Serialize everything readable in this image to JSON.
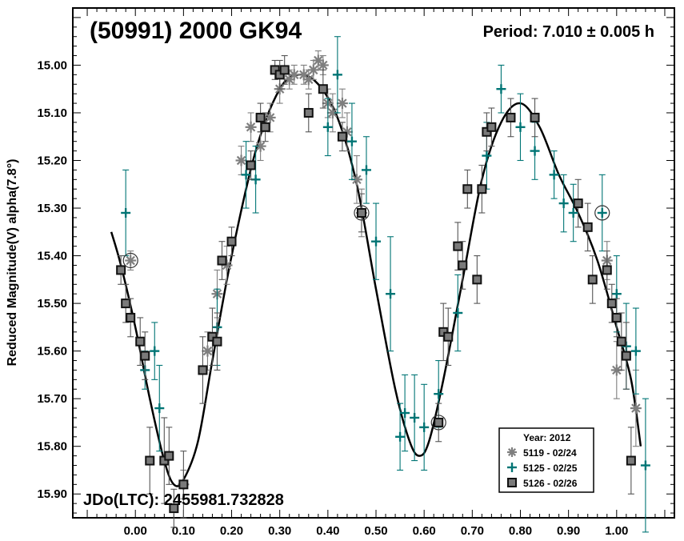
{
  "chart_data": {
    "type": "scatter",
    "title": "(50991) 2000 GK94",
    "period_text": "Period: 7.010 ± 0.005 h",
    "jdo_text": "JDo(LTC): 2455981.732828",
    "ylabel": "Reduced Magnitude(V) alpha(7.8°)",
    "xlabel": "",
    "xlim": [
      -0.13,
      1.12
    ],
    "ylim": [
      15.95,
      14.88
    ],
    "y_inverted": true,
    "grid": false,
    "x_ticks": [
      0.0,
      0.1,
      0.2,
      0.3,
      0.4,
      0.5,
      0.6,
      0.7,
      0.8,
      0.9,
      1.0
    ],
    "x_tick_labels": [
      "0.00",
      "0.10",
      "0.20",
      "0.30",
      "0.40",
      "0.50",
      "0.60",
      "0.70",
      "0.80",
      "0.90",
      "1.00"
    ],
    "y_ticks": [
      15.0,
      15.1,
      15.2,
      15.3,
      15.4,
      15.5,
      15.6,
      15.7,
      15.8,
      15.9
    ],
    "y_tick_labels": [
      "15.00",
      "15.10",
      "15.20",
      "15.30",
      "15.40",
      "15.50",
      "15.60",
      "15.70",
      "15.80",
      "15.90"
    ],
    "legend": {
      "title": "Year: 2012",
      "position": "bottom-right",
      "entries": [
        "5119 - 02/24",
        "5125 - 02/25",
        "5126 - 02/26"
      ]
    },
    "colors": {
      "s5119": "#7f7f7f",
      "s5125": "#007575",
      "s5126": "#555555",
      "curve": "#000000"
    },
    "fit_curve": [
      [
        -0.05,
        15.35
      ],
      [
        -0.03,
        15.42
      ],
      [
        0.0,
        15.55
      ],
      [
        0.03,
        15.7
      ],
      [
        0.06,
        15.83
      ],
      [
        0.08,
        15.88
      ],
      [
        0.1,
        15.87
      ],
      [
        0.13,
        15.79
      ],
      [
        0.16,
        15.62
      ],
      [
        0.2,
        15.4
      ],
      [
        0.25,
        15.18
      ],
      [
        0.3,
        15.05
      ],
      [
        0.34,
        15.02
      ],
      [
        0.38,
        15.04
      ],
      [
        0.42,
        15.11
      ],
      [
        0.46,
        15.25
      ],
      [
        0.5,
        15.47
      ],
      [
        0.54,
        15.68
      ],
      [
        0.57,
        15.79
      ],
      [
        0.59,
        15.82
      ],
      [
        0.61,
        15.79
      ],
      [
        0.64,
        15.66
      ],
      [
        0.68,
        15.45
      ],
      [
        0.72,
        15.24
      ],
      [
        0.76,
        15.12
      ],
      [
        0.8,
        15.08
      ],
      [
        0.84,
        15.13
      ],
      [
        0.88,
        15.23
      ],
      [
        0.92,
        15.31
      ],
      [
        0.96,
        15.41
      ],
      [
        1.0,
        15.55
      ],
      [
        1.03,
        15.66
      ],
      [
        1.05,
        15.8
      ]
    ],
    "series": [
      {
        "name": "5119 - 02/24",
        "marker": "asterisk",
        "points": [
          [
            -0.01,
            15.41,
            0.02
          ],
          [
            0.1,
            15.88,
            0.03
          ],
          [
            0.15,
            15.6,
            0.04
          ],
          [
            0.17,
            15.48,
            0.05
          ],
          [
            0.19,
            15.42,
            0.04
          ],
          [
            0.22,
            15.2,
            0.03
          ],
          [
            0.24,
            15.13,
            0.03
          ],
          [
            0.26,
            15.17,
            0.03
          ],
          [
            0.28,
            15.11,
            0.03
          ],
          [
            0.3,
            15.05,
            0.03
          ],
          [
            0.32,
            15.03,
            0.02
          ],
          [
            0.33,
            15.02,
            0.02
          ],
          [
            0.35,
            15.02,
            0.02
          ],
          [
            0.36,
            15.03,
            0.02
          ],
          [
            0.37,
            15.01,
            0.02
          ],
          [
            0.38,
            14.99,
            0.02
          ],
          [
            0.39,
            15.0,
            0.02
          ],
          [
            0.4,
            15.08,
            0.03
          ],
          [
            0.41,
            15.1,
            0.04
          ],
          [
            0.43,
            15.08,
            0.03
          ],
          [
            0.44,
            15.14,
            0.04
          ],
          [
            0.46,
            15.24,
            0.05
          ],
          [
            0.47,
            15.31,
            0.05
          ],
          [
            0.98,
            15.41,
            0.04
          ],
          [
            1.0,
            15.64,
            0.06
          ],
          [
            1.04,
            15.72,
            0.08
          ]
        ]
      },
      {
        "name": "5125 - 02/25",
        "marker": "plus",
        "points": [
          [
            -0.02,
            15.31,
            0.09
          ],
          [
            0.02,
            15.64,
            0.04
          ],
          [
            0.04,
            15.6,
            0.06
          ],
          [
            0.05,
            15.72,
            0.09
          ],
          [
            0.17,
            15.55,
            0.08
          ],
          [
            0.23,
            15.23,
            0.07
          ],
          [
            0.25,
            15.24,
            0.07
          ],
          [
            0.4,
            15.13,
            0.06
          ],
          [
            0.42,
            15.02,
            0.08
          ],
          [
            0.45,
            15.16,
            0.08
          ],
          [
            0.48,
            15.22,
            0.07
          ],
          [
            0.5,
            15.37,
            0.08
          ],
          [
            0.53,
            15.48,
            0.12
          ],
          [
            0.55,
            15.78,
            0.07
          ],
          [
            0.56,
            15.73,
            0.08
          ],
          [
            0.58,
            15.74,
            0.09
          ],
          [
            0.6,
            15.76,
            0.09
          ],
          [
            0.63,
            15.69,
            0.07
          ],
          [
            0.67,
            15.52,
            0.08
          ],
          [
            0.73,
            15.19,
            0.07
          ],
          [
            0.76,
            15.05,
            0.05
          ],
          [
            0.8,
            15.13,
            0.07
          ],
          [
            0.83,
            15.18,
            0.06
          ],
          [
            0.87,
            15.23,
            0.05
          ],
          [
            0.89,
            15.29,
            0.06
          ],
          [
            0.91,
            15.31,
            0.06
          ],
          [
            0.97,
            15.31,
            0.08
          ],
          [
            1.0,
            15.48,
            0.08
          ],
          [
            1.02,
            15.59,
            0.09
          ],
          [
            1.04,
            15.6,
            0.09
          ],
          [
            1.06,
            15.84,
            0.14
          ]
        ]
      },
      {
        "name": "5126 - 02/26",
        "marker": "square",
        "points": [
          [
            -0.03,
            15.43,
            0.03
          ],
          [
            -0.02,
            15.5,
            0.04
          ],
          [
            -0.01,
            15.53,
            0.04
          ],
          [
            0.01,
            15.58,
            0.05
          ],
          [
            0.02,
            15.61,
            0.05
          ],
          [
            0.03,
            15.83,
            0.07
          ],
          [
            0.06,
            15.83,
            0.09
          ],
          [
            0.07,
            15.82,
            0.06
          ],
          [
            0.08,
            15.93,
            0.04
          ],
          [
            0.1,
            15.88,
            0.07
          ],
          [
            0.14,
            15.64,
            0.07
          ],
          [
            0.16,
            15.57,
            0.06
          ],
          [
            0.17,
            15.58,
            0.06
          ],
          [
            0.18,
            15.41,
            0.04
          ],
          [
            0.2,
            15.37,
            0.03
          ],
          [
            0.24,
            15.21,
            0.03
          ],
          [
            0.26,
            15.11,
            0.03
          ],
          [
            0.27,
            15.13,
            0.03
          ],
          [
            0.29,
            15.01,
            0.02
          ],
          [
            0.3,
            15.02,
            0.03
          ],
          [
            0.31,
            15.01,
            0.03
          ],
          [
            0.36,
            15.1,
            0.04
          ],
          [
            0.39,
            15.05,
            0.04
          ],
          [
            0.43,
            15.15,
            0.03
          ],
          [
            0.47,
            15.31,
            0.04
          ],
          [
            0.63,
            15.75,
            0.04
          ],
          [
            0.64,
            15.56,
            0.06
          ],
          [
            0.65,
            15.57,
            0.06
          ],
          [
            0.67,
            15.38,
            0.05
          ],
          [
            0.68,
            15.42,
            0.05
          ],
          [
            0.69,
            15.26,
            0.04
          ],
          [
            0.71,
            15.45,
            0.05
          ],
          [
            0.72,
            15.26,
            0.05
          ],
          [
            0.73,
            15.14,
            0.04
          ],
          [
            0.74,
            15.13,
            0.04
          ],
          [
            0.78,
            15.11,
            0.04
          ],
          [
            0.83,
            15.11,
            0.04
          ],
          [
            0.92,
            15.29,
            0.05
          ],
          [
            0.94,
            15.34,
            0.05
          ],
          [
            0.95,
            15.45,
            0.05
          ],
          [
            0.98,
            15.43,
            0.04
          ],
          [
            0.99,
            15.5,
            0.04
          ],
          [
            1.0,
            15.53,
            0.04
          ],
          [
            1.01,
            15.58,
            0.06
          ],
          [
            1.02,
            15.61,
            0.07
          ],
          [
            1.03,
            15.83,
            0.07
          ]
        ]
      }
    ],
    "circled_points": [
      [
        -0.01,
        15.41
      ],
      [
        0.47,
        15.31
      ],
      [
        0.63,
        15.75
      ],
      [
        0.97,
        15.31
      ]
    ]
  }
}
